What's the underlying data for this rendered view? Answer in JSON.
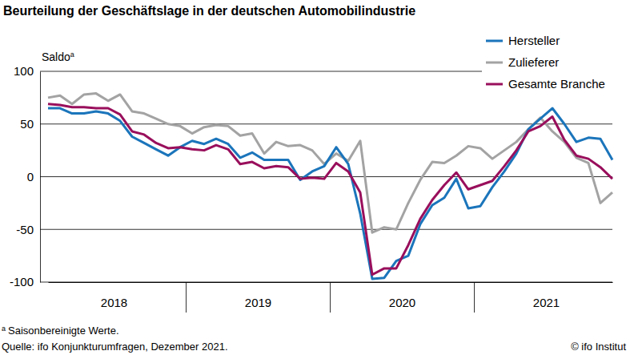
{
  "chart_data": {
    "type": "line",
    "title": "Beurteilung der Geschäftslage in der deutschen Automobilindustrie",
    "y_label": "Saldo",
    "footnote_marker": "a",
    "footnote": "Saisonbereinigte Werte.",
    "source": "Quelle: ifo Konjunkturumfragen, Dezember 2021.",
    "credit": "© ifo Institut",
    "categories": [
      null,
      null,
      null,
      null,
      null,
      "2018",
      null,
      null,
      null,
      null,
      null,
      null,
      null,
      null,
      null,
      null,
      null,
      "2019",
      null,
      null,
      null,
      null,
      null,
      null,
      null,
      null,
      null,
      null,
      null,
      "2020",
      null,
      null,
      null,
      null,
      null,
      null,
      null,
      null,
      null,
      null,
      null,
      "2021",
      null,
      null,
      null,
      null,
      null,
      null
    ],
    "series": [
      {
        "name": "Hersteller",
        "color": "#1b75bb",
        "values": [
          65,
          65,
          60,
          60,
          62,
          60,
          53,
          38,
          32,
          26,
          20,
          28,
          34,
          31,
          36,
          31,
          18,
          23,
          16,
          16,
          16,
          -3,
          5,
          10,
          28,
          12,
          -35,
          -97,
          -96,
          -80,
          -75,
          -45,
          -27,
          -20,
          -2,
          -30,
          -28,
          -10,
          5,
          22,
          45,
          55,
          65,
          50,
          33,
          37,
          36,
          16
        ]
      },
      {
        "name": "Zulieferer",
        "color": "#a3a3a3",
        "values": [
          75,
          77,
          69,
          78,
          79,
          72,
          78,
          62,
          60,
          55,
          50,
          48,
          41,
          47,
          49,
          48,
          39,
          41,
          22,
          33,
          29,
          30,
          25,
          12,
          22,
          15,
          34,
          -53,
          -48,
          -50,
          -25,
          -3,
          14,
          13,
          20,
          29,
          27,
          17,
          25,
          33,
          45,
          56,
          43,
          33,
          18,
          13,
          -25,
          -15
        ]
      },
      {
        "name": "Gesamte Branche",
        "color": "#990f5c",
        "values": [
          69,
          68,
          66,
          66,
          65,
          65,
          59,
          43,
          40,
          32,
          27,
          28,
          26,
          25,
          30,
          26,
          12,
          14,
          8,
          10,
          9,
          -2,
          -1,
          -2,
          13,
          5,
          -15,
          -93,
          -87,
          -87,
          -65,
          -40,
          -22,
          -8,
          4,
          -12,
          -8,
          -4,
          10,
          25,
          43,
          48,
          57,
          35,
          20,
          17,
          9,
          -2
        ]
      }
    ],
    "ylim": [
      -100,
      100
    ],
    "yticks": [
      -100,
      -50,
      0,
      50,
      100
    ],
    "grid": true,
    "legend": "top-right"
  }
}
